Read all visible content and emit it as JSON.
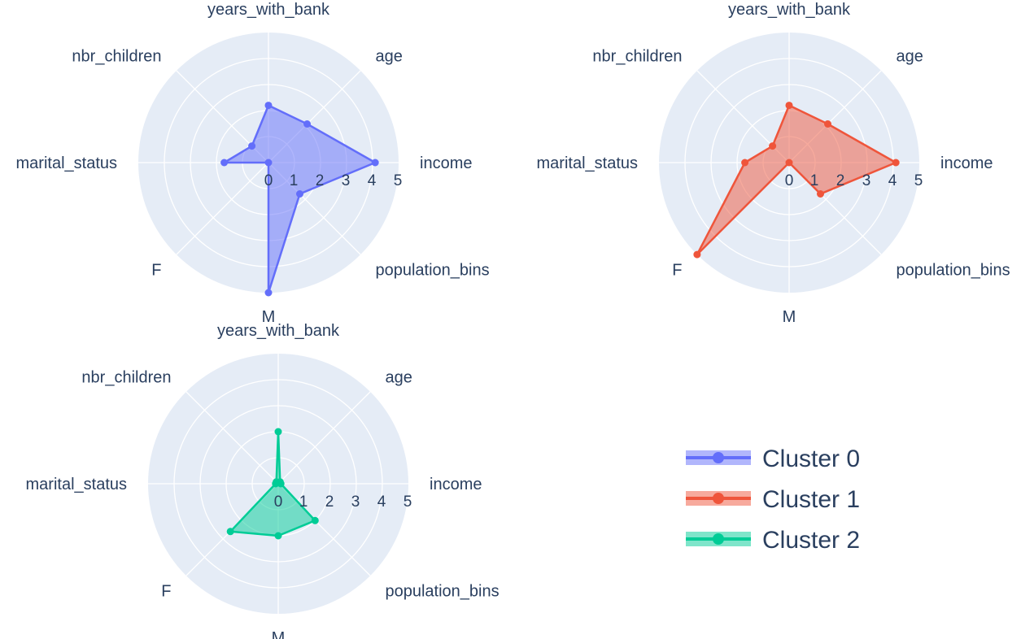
{
  "chart_data": [
    {
      "type": "radar",
      "theta": [
        "income",
        "age",
        "years_with_bank",
        "nbr_children",
        "marital_status",
        "F",
        "M",
        "population_bins"
      ],
      "radial_ticks": [
        "0",
        "1",
        "2",
        "3",
        "4",
        "5"
      ],
      "radial_range": [
        0,
        5
      ],
      "series": [
        {
          "name": "Cluster 0",
          "color": "#636efa",
          "values": [
            4.1,
            2.1,
            2.2,
            0.9,
            1.7,
            0.0,
            5.0,
            1.7
          ]
        }
      ]
    },
    {
      "type": "radar",
      "theta": [
        "income",
        "age",
        "years_with_bank",
        "nbr_children",
        "marital_status",
        "F",
        "M",
        "population_bins"
      ],
      "radial_ticks": [
        "0",
        "1",
        "2",
        "3",
        "4",
        "5"
      ],
      "radial_range": [
        0,
        5
      ],
      "series": [
        {
          "name": "Cluster 1",
          "color": "#ef553b",
          "values": [
            4.1,
            2.1,
            2.2,
            0.9,
            1.7,
            5.0,
            0.0,
            1.7
          ]
        }
      ]
    },
    {
      "type": "radar",
      "theta": [
        "income",
        "age",
        "years_with_bank",
        "nbr_children",
        "marital_status",
        "F",
        "M",
        "population_bins"
      ],
      "radial_ticks": [
        "0",
        "1",
        "2",
        "3",
        "4",
        "5"
      ],
      "radial_range": [
        0,
        5
      ],
      "series": [
        {
          "name": "Cluster 2",
          "color": "#00cc96",
          "values": [
            0.1,
            0.1,
            2.0,
            0.1,
            0.1,
            2.6,
            2.0,
            2.0
          ]
        }
      ]
    }
  ],
  "legend": {
    "placement": "right",
    "items": [
      {
        "label": "Cluster 0",
        "color": "#636efa"
      },
      {
        "label": "Cluster 1",
        "color": "#ef553b"
      },
      {
        "label": "Cluster 2",
        "color": "#00cc96"
      }
    ]
  },
  "colors": {
    "polar_background": "#e5ecf6",
    "grid": "#ffffff",
    "text": "#2a3f5f"
  }
}
